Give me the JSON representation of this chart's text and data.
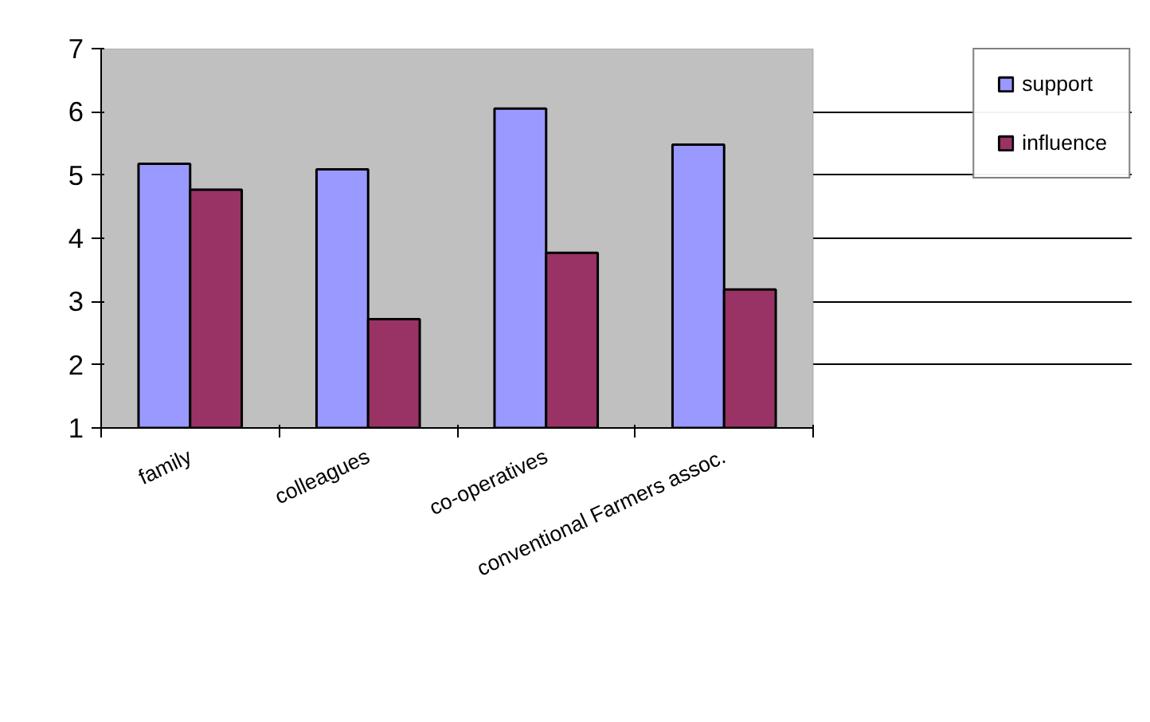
{
  "chart_data": {
    "type": "bar",
    "categories": [
      "family",
      "colleagues",
      "co-operatives",
      "conventional Farmers assoc."
    ],
    "series": [
      {
        "name": "support",
        "color": "#9999ff",
        "values": [
          5.18,
          5.09,
          6.05,
          5.48
        ]
      },
      {
        "name": "influence",
        "color": "#993366",
        "values": [
          4.77,
          2.72,
          3.77,
          3.19
        ]
      }
    ],
    "ylim": [
      1,
      7
    ],
    "yticks": [
      1,
      2,
      3,
      4,
      5,
      6,
      7
    ],
    "grid": "y",
    "legend": "right"
  }
}
